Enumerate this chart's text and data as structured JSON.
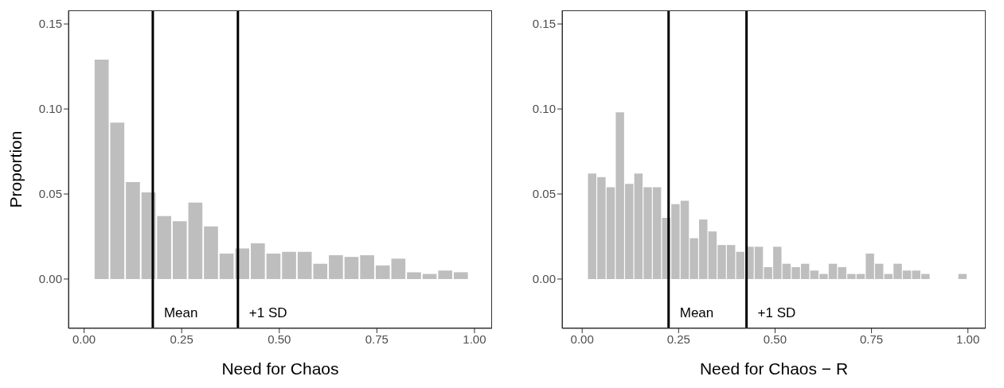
{
  "chart_data": [
    {
      "type": "histogram",
      "xlabel": "Need for Chaos",
      "ylabel": "Proportion",
      "color": "#bebebe",
      "bins": [
        0.025,
        0.065,
        0.105,
        0.145,
        0.185,
        0.225,
        0.265,
        0.305,
        0.345,
        0.385,
        0.425,
        0.465,
        0.505,
        0.545,
        0.585,
        0.625,
        0.665,
        0.705,
        0.745,
        0.785,
        0.825,
        0.865,
        0.905,
        0.945,
        0.985
      ],
      "values": [
        0.129,
        0.092,
        0.057,
        0.051,
        0.037,
        0.034,
        0.045,
        0.031,
        0.015,
        0.018,
        0.021,
        0.015,
        0.016,
        0.016,
        0.009,
        0.014,
        0.013,
        0.014,
        0.008,
        0.012,
        0.004,
        0.003,
        0.005,
        0.004
      ],
      "xlim": [
        -0.04,
        1.045
      ],
      "ylim": [
        -0.029,
        0.158
      ],
      "xticks": [
        {
          "value": 0,
          "label": "0.00"
        },
        {
          "value": 0.25,
          "label": "0.25"
        },
        {
          "value": 0.5,
          "label": "0.50"
        },
        {
          "value": 0.75,
          "label": "0.75"
        },
        {
          "value": 1,
          "label": "1.00"
        }
      ],
      "yticks": [
        {
          "value": 0,
          "label": "0.00"
        },
        {
          "value": 0.05,
          "label": "0.05"
        },
        {
          "value": 0.1,
          "label": "0.10"
        },
        {
          "value": 0.15,
          "label": "0.15"
        }
      ],
      "ref_lines": [
        {
          "axis": "x",
          "value": 0.176,
          "label": "Mean",
          "color": "#000000"
        },
        {
          "axis": "x",
          "value": 0.394,
          "label": "+1 SD",
          "color": "#000000"
        }
      ],
      "grid": false
    },
    {
      "type": "histogram",
      "xlabel": "Need for Chaos − R",
      "color": "#bebebe",
      "bins": [
        0.013,
        0.037,
        0.061,
        0.085,
        0.109,
        0.133,
        0.157,
        0.181,
        0.205,
        0.229,
        0.253,
        0.277,
        0.301,
        0.325,
        0.349,
        0.373,
        0.397,
        0.421,
        0.445,
        0.469,
        0.493,
        0.517,
        0.541,
        0.565,
        0.589,
        0.613,
        0.637,
        0.661,
        0.685,
        0.709,
        0.733,
        0.757,
        0.781,
        0.805,
        0.829,
        0.853,
        0.877,
        0.901,
        0.925,
        0.949,
        0.973,
        0.997
      ],
      "values": [
        0.062,
        0.06,
        0.054,
        0.098,
        0.056,
        0.062,
        0.054,
        0.054,
        0.036,
        0.044,
        0.046,
        0.024,
        0.035,
        0.028,
        0.02,
        0.02,
        0.016,
        0.019,
        0.019,
        0.007,
        0.019,
        0.009,
        0.007,
        0.009,
        0.005,
        0.003,
        0.009,
        0.007,
        0.003,
        0.003,
        0.015,
        0.009,
        0.003,
        0.009,
        0.005,
        0.005,
        0.003,
        0,
        0,
        0,
        0.003
      ],
      "xlim": [
        -0.052,
        1.046
      ],
      "ylim": [
        -0.029,
        0.158
      ],
      "xticks": [
        {
          "value": 0,
          "label": "0.00"
        },
        {
          "value": 0.25,
          "label": "0.25"
        },
        {
          "value": 0.5,
          "label": "0.50"
        },
        {
          "value": 0.75,
          "label": "0.75"
        },
        {
          "value": 1,
          "label": "1.00"
        }
      ],
      "yticks": [
        {
          "value": 0,
          "label": "0.00"
        },
        {
          "value": 0.05,
          "label": "0.05"
        },
        {
          "value": 0.1,
          "label": "0.10"
        },
        {
          "value": 0.15,
          "label": "0.15"
        }
      ],
      "ref_lines": [
        {
          "axis": "x",
          "value": 0.224,
          "label": "Mean",
          "color": "#000000"
        },
        {
          "axis": "x",
          "value": 0.426,
          "label": "+1 SD",
          "color": "#000000"
        }
      ],
      "grid": false
    }
  ]
}
